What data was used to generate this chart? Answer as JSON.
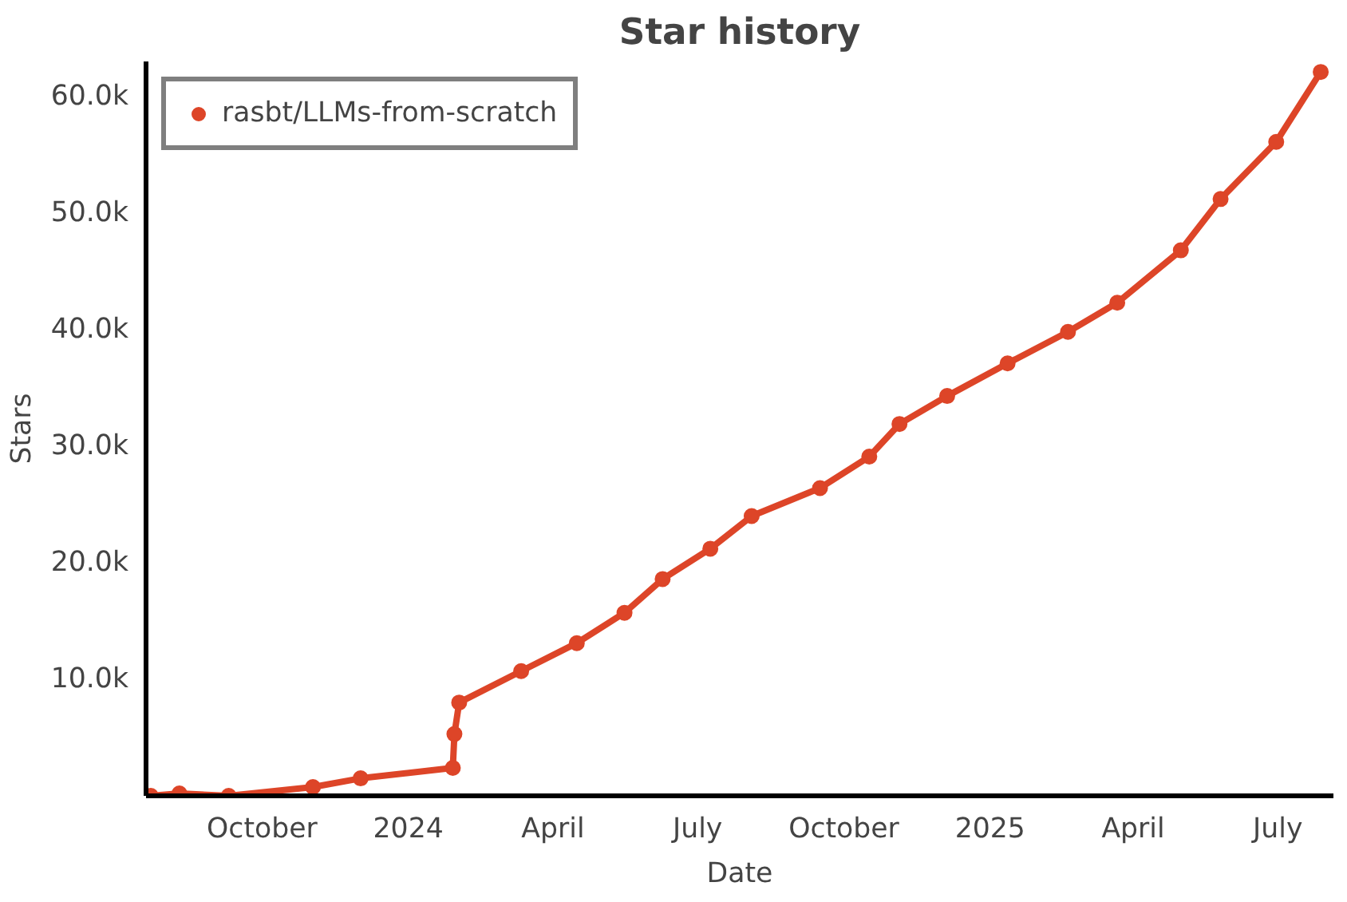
{
  "chart_data": {
    "type": "line",
    "title": "Star history",
    "xlabel": "Date",
    "ylabel": "Stars",
    "x": [
      "2023-07-23",
      "2023-08-10",
      "2023-09-10",
      "2023-11-02",
      "2023-12-02",
      "2024-01-29",
      "2024-01-30",
      "2024-02-02",
      "2024-03-12",
      "2024-04-16",
      "2024-05-16",
      "2024-06-09",
      "2024-07-09",
      "2024-08-04",
      "2024-09-16",
      "2024-10-17",
      "2024-11-05",
      "2024-12-05",
      "2025-01-12",
      "2025-02-19",
      "2025-03-22",
      "2025-05-01",
      "2025-05-26",
      "2025-06-30",
      "2025-07-28"
    ],
    "series": [
      {
        "name": "rasbt/LLMs-from-scratch",
        "color": "#dd4528",
        "values": [
          0,
          200,
          0,
          750,
          1500,
          2400,
          5300,
          8000,
          10700,
          13100,
          15700,
          18600,
          21200,
          24000,
          26400,
          29100,
          31900,
          34300,
          37100,
          39800,
          42300,
          46800,
          51200,
          56100,
          62100
        ]
      }
    ],
    "xlim": [
      "2023-07-20",
      "2025-08-05"
    ],
    "xticks": [
      {
        "value": "2023-10-01",
        "label": "October"
      },
      {
        "value": "2024-01-01",
        "label": "2024"
      },
      {
        "value": "2024-04-01",
        "label": "April"
      },
      {
        "value": "2024-07-01",
        "label": "July"
      },
      {
        "value": "2024-10-01",
        "label": "October"
      },
      {
        "value": "2025-01-01",
        "label": "2025"
      },
      {
        "value": "2025-04-01",
        "label": "April"
      },
      {
        "value": "2025-07-01",
        "label": "July"
      }
    ],
    "ylim": [
      0,
      63000
    ],
    "yticks": [
      {
        "value": 10000,
        "label": "10.0k"
      },
      {
        "value": 20000,
        "label": "20.0k"
      },
      {
        "value": 30000,
        "label": "30.0k"
      },
      {
        "value": 40000,
        "label": "40.0k"
      },
      {
        "value": 50000,
        "label": "50.0k"
      },
      {
        "value": 60000,
        "label": "60.0k"
      }
    ],
    "grid": false,
    "legend": "top left",
    "marker": "circle",
    "line_style": "solid"
  }
}
